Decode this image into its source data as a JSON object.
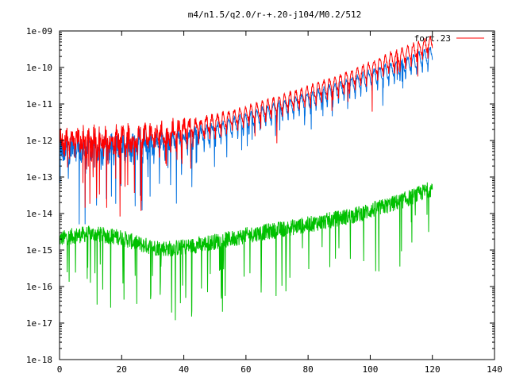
{
  "chart_data": {
    "type": "line",
    "title": "m4/n1.5/q2.0/r-+.20-j104/M0.2/512",
    "xlabel": "",
    "ylabel": "",
    "xlim": [
      0,
      140
    ],
    "ylim": [
      1e-18,
      1e-09
    ],
    "y_scale": "log",
    "x_ticks": [
      "0",
      "20",
      "40",
      "60",
      "80",
      "100",
      "120",
      "140"
    ],
    "y_ticks": [
      "1e-18",
      "1e-17",
      "1e-16",
      "1e-15",
      "1e-14",
      "1e-13",
      "1e-12",
      "1e-11",
      "1e-10",
      "1e-09"
    ],
    "grid": false,
    "legend_position": "top-right",
    "legend": [
      {
        "label": "fort.23",
        "color": "#ff0000"
      }
    ],
    "series": [
      {
        "name": "fort.23",
        "color": "#ff0000",
        "x": [
          0,
          5,
          10,
          15,
          20,
          25,
          30,
          35,
          40,
          45,
          50,
          55,
          60,
          65,
          70,
          75,
          80,
          85,
          90,
          95,
          100,
          105,
          110,
          115,
          120
        ],
        "y": [
          8e-13,
          1e-12,
          1e-12,
          1e-12,
          1e-12,
          1.1e-12,
          1.3e-12,
          1.6e-12,
          2e-12,
          2.5e-12,
          3.2e-12,
          4.2e-12,
          5.6e-12,
          7.5e-12,
          1e-11,
          1.4e-11,
          2e-11,
          2.8e-11,
          4e-11,
          6e-11,
          9e-11,
          1.4e-10,
          2.1e-10,
          3.2e-10,
          5e-10
        ]
      },
      {
        "color": "#0070e0",
        "x": [
          0,
          5,
          10,
          15,
          20,
          25,
          30,
          35,
          40,
          45,
          50,
          55,
          60,
          65,
          70,
          75,
          80,
          85,
          90,
          95,
          100,
          105,
          110,
          115,
          120
        ],
        "y": [
          5e-13,
          6e-13,
          6e-13,
          6e-13,
          6e-13,
          7e-13,
          8e-13,
          9e-13,
          1.1e-12,
          1.4e-12,
          1.8e-12,
          2.5e-12,
          3.5e-12,
          5e-12,
          7e-12,
          9.5e-12,
          1.3e-11,
          1.8e-11,
          2.6e-11,
          3.7e-11,
          5.3e-11,
          7.5e-11,
          1.1e-10,
          1.6e-10,
          2.4e-10
        ]
      },
      {
        "color": "#00c000",
        "x": [
          0,
          5,
          10,
          15,
          20,
          25,
          30,
          35,
          40,
          45,
          50,
          55,
          60,
          65,
          70,
          75,
          80,
          85,
          90,
          95,
          100,
          105,
          110,
          115,
          120
        ],
        "y": [
          2e-15,
          2.5e-15,
          2.8e-15,
          2.5e-15,
          2.2e-15,
          1.5e-15,
          1.2e-15,
          1.1e-15,
          1.2e-15,
          1.4e-15,
          1.7e-15,
          2e-15,
          2.5e-15,
          3e-15,
          3.5e-15,
          4.2e-15,
          5e-15,
          6e-15,
          7.5e-15,
          9e-15,
          1.2e-14,
          1.6e-14,
          2.2e-14,
          3.2e-14,
          5e-14
        ]
      }
    ]
  }
}
